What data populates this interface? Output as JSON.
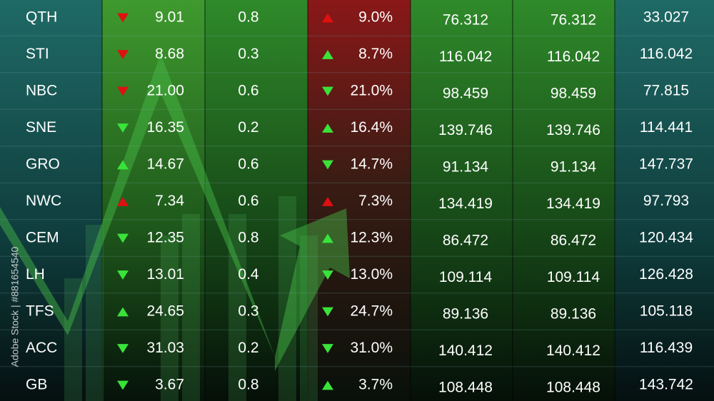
{
  "table": {
    "rows": [
      {
        "ticker": "QTH",
        "price_arrow": "down",
        "price_arrow_color": "red",
        "price": "9.01",
        "change": "0.8",
        "pct_arrow": "up",
        "pct_arrow_color": "red",
        "pct": "9.0%",
        "open": "76.312",
        "close": "76.312",
        "volume": "33.027"
      },
      {
        "ticker": "STI",
        "price_arrow": "down",
        "price_arrow_color": "red",
        "price": "8.68",
        "change": "0.3",
        "pct_arrow": "up",
        "pct_arrow_color": "green",
        "pct": "8.7%",
        "open": "116.042",
        "close": "116.042",
        "volume": "116.042"
      },
      {
        "ticker": "NBC",
        "price_arrow": "down",
        "price_arrow_color": "red",
        "price": "21.00",
        "change": "0.6",
        "pct_arrow": "down",
        "pct_arrow_color": "green",
        "pct": "21.0%",
        "open": "98.459",
        "close": "98.459",
        "volume": "77.815"
      },
      {
        "ticker": "SNE",
        "price_arrow": "down",
        "price_arrow_color": "green",
        "price": "16.35",
        "change": "0.2",
        "pct_arrow": "up",
        "pct_arrow_color": "green",
        "pct": "16.4%",
        "open": "139.746",
        "close": "139.746",
        "volume": "114.441"
      },
      {
        "ticker": "GRO",
        "price_arrow": "up",
        "price_arrow_color": "green",
        "price": "14.67",
        "change": "0.6",
        "pct_arrow": "down",
        "pct_arrow_color": "green",
        "pct": "14.7%",
        "open": "91.134",
        "close": "91.134",
        "volume": "147.737"
      },
      {
        "ticker": "NWC",
        "price_arrow": "up",
        "price_arrow_color": "red",
        "price": "7.34",
        "change": "0.6",
        "pct_arrow": "up",
        "pct_arrow_color": "red",
        "pct": "7.3%",
        "open": "134.419",
        "close": "134.419",
        "volume": "97.793"
      },
      {
        "ticker": "CEM",
        "price_arrow": "down",
        "price_arrow_color": "green",
        "price": "12.35",
        "change": "0.8",
        "pct_arrow": "up",
        "pct_arrow_color": "green",
        "pct": "12.3%",
        "open": "86.472",
        "close": "86.472",
        "volume": "120.434"
      },
      {
        "ticker": "LH",
        "price_arrow": "down",
        "price_arrow_color": "green",
        "price": "13.01",
        "change": "0.4",
        "pct_arrow": "down",
        "pct_arrow_color": "green",
        "pct": "13.0%",
        "open": "109.114",
        "close": "109.114",
        "volume": "126.428"
      },
      {
        "ticker": "TFS",
        "price_arrow": "up",
        "price_arrow_color": "green",
        "price": "24.65",
        "change": "0.3",
        "pct_arrow": "down",
        "pct_arrow_color": "green",
        "pct": "24.7%",
        "open": "89.136",
        "close": "89.136",
        "volume": "105.118"
      },
      {
        "ticker": "ACC",
        "price_arrow": "down",
        "price_arrow_color": "green",
        "price": "31.03",
        "change": "0.2",
        "pct_arrow": "down",
        "pct_arrow_color": "green",
        "pct": "31.0%",
        "open": "140.412",
        "close": "140.412",
        "volume": "116.439"
      },
      {
        "ticker": "GB",
        "price_arrow": "down",
        "price_arrow_color": "green",
        "price": "3.67",
        "change": "0.8",
        "pct_arrow": "up",
        "pct_arrow_color": "green",
        "pct": "3.7%",
        "open": "108.448",
        "close": "108.448",
        "volume": "143.742"
      }
    ]
  },
  "watermark": "Adobe Stock | #881654540"
}
